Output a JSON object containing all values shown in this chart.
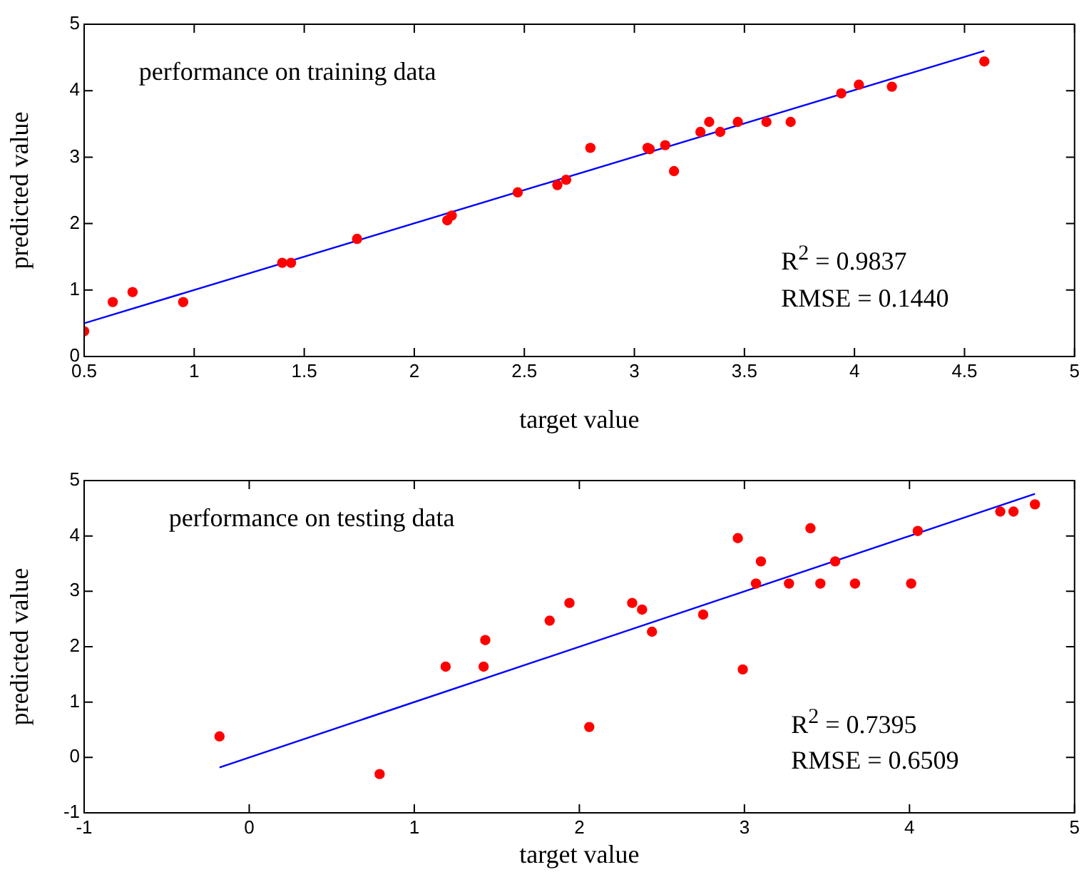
{
  "chart_data": [
    {
      "type": "scatter",
      "xlabel": "target value",
      "ylabel": "predicted value",
      "xlim": [
        0.5,
        5
      ],
      "ylim": [
        0,
        5
      ],
      "xticks": [
        0.5,
        1,
        1.5,
        2,
        2.5,
        3,
        3.5,
        4,
        4.5,
        5
      ],
      "yticks": [
        0,
        1,
        2,
        3,
        4,
        5
      ],
      "grid": false,
      "legend": false,
      "annotations": [
        "performance on training data",
        "R$^{2}$ = 0.9837",
        "RMSE = 0.1440"
      ],
      "series": [
        {
          "color": "#ff0000",
          "marker": "circle",
          "x": [
            0.5,
            0.63,
            0.72,
            0.95,
            1.4,
            1.44,
            1.74,
            2.15,
            2.17,
            2.47,
            2.65,
            2.69,
            2.8,
            3.06,
            3.07,
            3.14,
            3.18,
            3.3,
            3.34,
            3.39,
            3.47,
            3.6,
            3.71,
            3.94,
            4.02,
            4.17,
            4.59
          ],
          "values": [
            0.38,
            0.82,
            0.97,
            0.82,
            1.41,
            1.41,
            1.77,
            2.05,
            2.12,
            2.47,
            2.58,
            2.66,
            3.14,
            3.14,
            3.12,
            3.18,
            2.79,
            3.38,
            3.53,
            3.38,
            3.53,
            3.53,
            3.53,
            3.96,
            4.09,
            4.06,
            4.44
          ]
        },
        {
          "type": "line",
          "color": "#0000ff",
          "marker": "none",
          "x": [
            0.5,
            4.59
          ],
          "values": [
            0.5,
            4.6
          ]
        }
      ]
    },
    {
      "type": "scatter",
      "xlabel": "target value",
      "ylabel": "predicted value",
      "xlim": [
        -1,
        5
      ],
      "ylim": [
        -1,
        5
      ],
      "xticks": [
        -1,
        0,
        1,
        2,
        3,
        4,
        5
      ],
      "yticks": [
        -1,
        0,
        1,
        2,
        3,
        4,
        5
      ],
      "grid": false,
      "legend": false,
      "annotations": [
        "performance on testing data",
        "R$^{2}$ = 0.7395",
        "RMSE = 0.6509"
      ],
      "series": [
        {
          "color": "#ff0000",
          "marker": "circle",
          "x": [
            -0.18,
            0.79,
            1.19,
            1.42,
            1.43,
            1.82,
            1.94,
            2.06,
            2.32,
            2.38,
            2.44,
            2.75,
            2.96,
            2.99,
            3.07,
            3.1,
            3.27,
            3.4,
            3.46,
            3.55,
            3.67,
            4.01,
            4.05,
            4.55,
            4.63,
            4.76
          ],
          "values": [
            0.38,
            -0.3,
            1.64,
            1.64,
            2.12,
            2.47,
            2.79,
            0.55,
            2.79,
            2.67,
            2.27,
            2.58,
            3.96,
            1.59,
            3.14,
            3.54,
            3.14,
            4.14,
            3.14,
            3.54,
            3.14,
            3.14,
            4.09,
            4.44,
            4.44,
            4.57
          ]
        },
        {
          "type": "line",
          "color": "#0000ff",
          "marker": "none",
          "x": [
            -0.18,
            4.76
          ],
          "values": [
            -0.18,
            4.76
          ]
        }
      ]
    }
  ]
}
